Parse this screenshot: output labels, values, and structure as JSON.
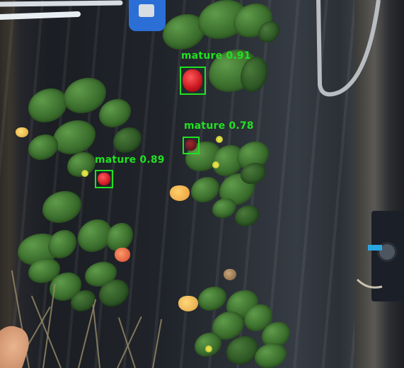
{
  "detections": [
    {
      "label": "mature",
      "score": "0.91"
    },
    {
      "label": "mature",
      "score": "0.78"
    },
    {
      "label": "mature",
      "score": "0.89"
    }
  ],
  "colors": {
    "box": "#22e022",
    "label": "#22e022"
  }
}
